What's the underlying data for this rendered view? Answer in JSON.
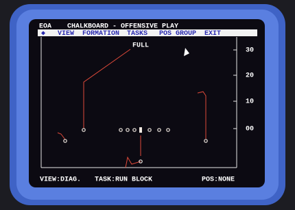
{
  "header": {
    "left": "EOA",
    "title": "CHALKBOARD - OFFENSIVE PLAY"
  },
  "menu": {
    "marker": "◆",
    "items": [
      "VIEW",
      "FORMATION",
      "TASKS",
      "POS",
      "GROUP",
      "EXIT"
    ]
  },
  "field": {
    "label": "FULL",
    "yard_labels": [
      "30",
      "20",
      "10",
      "00"
    ]
  },
  "status": [
    "VIEW:DIAG.",
    "TASK:RUN BLOCK",
    "POS:NONE"
  ]
}
